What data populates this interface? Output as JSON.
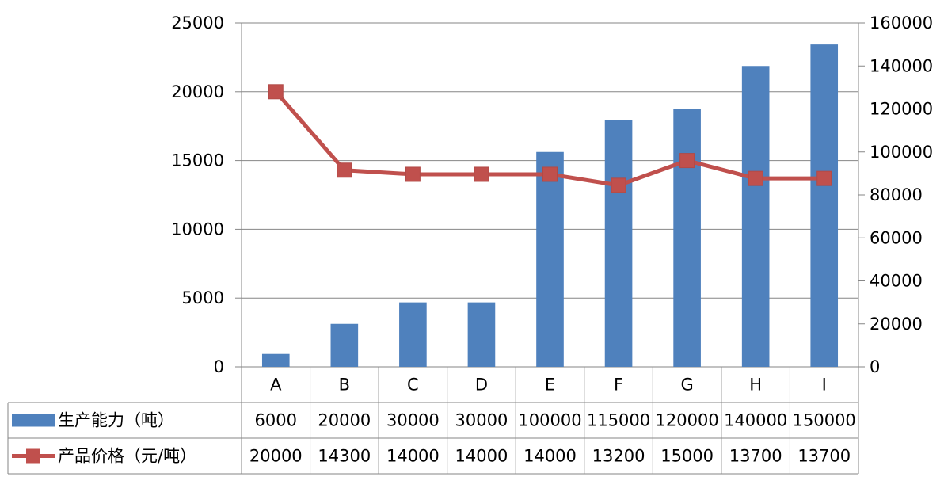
{
  "chart_data": {
    "type": "bar+line",
    "categories": [
      "A",
      "B",
      "C",
      "D",
      "E",
      "F",
      "G",
      "H",
      "I"
    ],
    "series": [
      {
        "name": "生产能力（吨）",
        "type": "bar",
        "axis": "right",
        "color": "#4f81bd",
        "values": [
          6000,
          20000,
          30000,
          30000,
          100000,
          115000,
          120000,
          140000,
          150000
        ],
        "labels": [
          "6000",
          "20000",
          "30000",
          "30000",
          "100000",
          "115000",
          "120000",
          "140000",
          "150000"
        ]
      },
      {
        "name": "产品价格（元/吨）",
        "type": "line",
        "axis": "left",
        "color": "#c0504d",
        "values": [
          20000,
          14300,
          14000,
          14000,
          14000,
          13200,
          15000,
          13700,
          13700
        ],
        "labels": [
          "20000",
          "14300",
          "14000",
          "14000",
          "14000",
          "13200",
          "15000",
          "13700",
          "13700"
        ]
      }
    ],
    "y_left": {
      "min": 0,
      "max": 25000,
      "ticks": [
        "0",
        "5000",
        "10000",
        "15000",
        "20000",
        "25000"
      ]
    },
    "y_right": {
      "min": 0,
      "max": 160000,
      "ticks": [
        "0",
        "20000",
        "40000",
        "60000",
        "80000",
        "100000",
        "120000",
        "140000",
        "160000"
      ]
    },
    "grid": true,
    "legend": "data-table-bottom"
  }
}
